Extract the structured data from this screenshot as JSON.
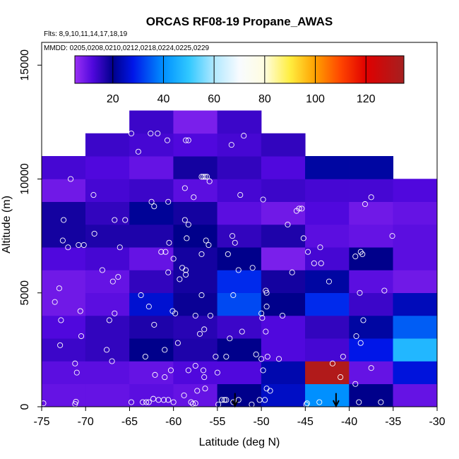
{
  "chart_data": {
    "type": "heatmap",
    "title": "ORCAS RF08-19 Propane_AWAS",
    "flights_note": "Flts: 8,9,10,11,14,17,18,19",
    "dates_note": "MMDD: 0205,0208,0210,0212,0218,0224,0225,0229",
    "xlabel": "Latitude (deg N)",
    "ylabel": "Altitude (m)",
    "xlim": [
      -75,
      -30
    ],
    "ylim": [
      0,
      16000
    ],
    "x_ticks": [
      -75,
      -70,
      -65,
      -60,
      -55,
      -50,
      -45,
      -40,
      -35,
      -30
    ],
    "x_tick_labels": [
      "-75",
      "-70",
      "-65",
      "-60",
      "-55",
      "-50",
      "-45",
      "-40",
      "-35",
      "-30"
    ],
    "y_ticks": [
      0,
      5000,
      10000,
      15000
    ],
    "y_tick_labels": [
      "0",
      "5000",
      "10000",
      "15000"
    ],
    "colorbar": {
      "min": 5,
      "max": 135,
      "ticks": [
        20,
        40,
        60,
        80,
        100,
        120
      ],
      "tick_labels": [
        "20",
        "40",
        "60",
        "80",
        "100",
        "120"
      ],
      "stops": [
        {
          "v": 5,
          "c": "#9a30f5"
        },
        {
          "v": 12,
          "c": "#5008dd"
        },
        {
          "v": 20,
          "c": "#00008b"
        },
        {
          "v": 28,
          "c": "#0016e8"
        },
        {
          "v": 40,
          "c": "#0090ff"
        },
        {
          "v": 50,
          "c": "#30c8ff"
        },
        {
          "v": 60,
          "c": "#b0e8ff"
        },
        {
          "v": 70,
          "c": "#f8fbff"
        },
        {
          "v": 80,
          "c": "#fffde0"
        },
        {
          "v": 90,
          "c": "#ffee40"
        },
        {
          "v": 100,
          "c": "#ffa000"
        },
        {
          "v": 110,
          "c": "#ff4500"
        },
        {
          "v": 120,
          "c": "#e00000"
        },
        {
          "v": 135,
          "c": "#a52020"
        }
      ]
    },
    "bin_size": {
      "lat": 5,
      "alt": 1000
    },
    "cells": [
      [
        -75,
        0,
        10
      ],
      [
        -70,
        0,
        10
      ],
      [
        -65,
        0,
        11
      ],
      [
        -60,
        0,
        10
      ],
      [
        -55,
        0,
        20
      ],
      [
        -50,
        0,
        25
      ],
      [
        -45,
        0,
        40
      ],
      [
        -40,
        0,
        20
      ],
      [
        -35,
        0,
        10
      ],
      [
        -75,
        1000,
        11
      ],
      [
        -70,
        1000,
        11
      ],
      [
        -65,
        1000,
        10
      ],
      [
        -60,
        1000,
        12
      ],
      [
        -55,
        1000,
        12
      ],
      [
        -50,
        1000,
        23
      ],
      [
        -45,
        1000,
        132
      ],
      [
        -40,
        1000,
        10
      ],
      [
        -35,
        1000,
        27
      ],
      [
        -75,
        2000,
        14
      ],
      [
        -70,
        2000,
        15
      ],
      [
        -65,
        2000,
        20
      ],
      [
        -60,
        2000,
        17
      ],
      [
        -55,
        2000,
        20
      ],
      [
        -50,
        2000,
        12
      ],
      [
        -45,
        2000,
        13
      ],
      [
        -40,
        2000,
        28
      ],
      [
        -35,
        2000,
        47
      ],
      [
        -75,
        3000,
        12
      ],
      [
        -70,
        3000,
        15
      ],
      [
        -65,
        3000,
        17
      ],
      [
        -60,
        3000,
        16
      ],
      [
        -55,
        3000,
        14
      ],
      [
        -50,
        3000,
        12
      ],
      [
        -45,
        3000,
        15
      ],
      [
        -40,
        3000,
        22
      ],
      [
        -35,
        3000,
        35
      ],
      [
        -75,
        4000,
        9
      ],
      [
        -70,
        4000,
        11
      ],
      [
        -65,
        4000,
        26
      ],
      [
        -60,
        4000,
        19
      ],
      [
        -55,
        4000,
        33
      ],
      [
        -50,
        4000,
        20
      ],
      [
        -45,
        4000,
        30
      ],
      [
        -40,
        4000,
        14
      ],
      [
        -35,
        4000,
        24
      ],
      [
        -75,
        5000,
        9
      ],
      [
        -70,
        5000,
        10
      ],
      [
        -65,
        5000,
        15
      ],
      [
        -60,
        5000,
        18
      ],
      [
        -55,
        5000,
        30
      ],
      [
        -50,
        5000,
        18
      ],
      [
        -45,
        5000,
        22
      ],
      [
        -40,
        5000,
        11
      ],
      [
        -35,
        5000,
        9
      ],
      [
        -75,
        6000,
        12
      ],
      [
        -70,
        6000,
        13
      ],
      [
        -65,
        6000,
        10
      ],
      [
        -60,
        6000,
        18
      ],
      [
        -55,
        6000,
        20
      ],
      [
        -50,
        6000,
        8
      ],
      [
        -45,
        6000,
        13
      ],
      [
        -40,
        6000,
        20
      ],
      [
        -35,
        6000,
        11
      ],
      [
        -75,
        7000,
        18
      ],
      [
        -70,
        7000,
        17
      ],
      [
        -65,
        7000,
        17
      ],
      [
        -60,
        7000,
        20
      ],
      [
        -55,
        7000,
        15
      ],
      [
        -50,
        7000,
        17
      ],
      [
        -45,
        7000,
        11
      ],
      [
        -40,
        7000,
        10
      ],
      [
        -35,
        7000,
        11
      ],
      [
        -75,
        8000,
        18
      ],
      [
        -70,
        8000,
        15
      ],
      [
        -65,
        8000,
        21
      ],
      [
        -60,
        8000,
        18
      ],
      [
        -55,
        8000,
        11
      ],
      [
        -50,
        8000,
        9
      ],
      [
        -45,
        8000,
        12
      ],
      [
        -40,
        8000,
        9
      ],
      [
        -35,
        8000,
        10
      ],
      [
        -75,
        9000,
        9
      ],
      [
        -70,
        9000,
        13
      ],
      [
        -65,
        9000,
        14
      ],
      [
        -60,
        9000,
        11
      ],
      [
        -55,
        9000,
        13
      ],
      [
        -50,
        9000,
        14
      ],
      [
        -45,
        9000,
        13
      ],
      [
        -40,
        9000,
        13
      ],
      [
        -35,
        9000,
        12
      ],
      [
        -75,
        10000,
        13
      ],
      [
        -70,
        10000,
        12
      ],
      [
        -65,
        10000,
        10
      ],
      [
        -60,
        10000,
        18
      ],
      [
        -55,
        10000,
        15
      ],
      [
        -50,
        10000,
        12
      ],
      [
        -45,
        10000,
        22
      ],
      [
        -40,
        10000,
        22
      ],
      [
        -70,
        11000,
        14
      ],
      [
        -65,
        11000,
        13
      ],
      [
        -60,
        11000,
        12
      ],
      [
        -55,
        11000,
        13
      ],
      [
        -50,
        11000,
        15
      ],
      [
        -65,
        12000,
        14
      ],
      [
        -60,
        12000,
        8
      ],
      [
        -55,
        12000,
        14
      ]
    ],
    "samples": [
      [
        -74.8,
        150
      ],
      [
        -71.2,
        120
      ],
      [
        -71.1,
        220
      ],
      [
        -71.0,
        1500
      ],
      [
        -71.2,
        1900
      ],
      [
        -70.5,
        3100
      ],
      [
        -70.6,
        4200
      ],
      [
        -72.9,
        2700
      ],
      [
        -72.8,
        3800
      ],
      [
        -73.5,
        4600
      ],
      [
        -73.0,
        5200
      ],
      [
        -72.0,
        7000
      ],
      [
        -72.6,
        7300
      ],
      [
        -72.5,
        8200
      ],
      [
        -70.8,
        7100
      ],
      [
        -70.2,
        7100
      ],
      [
        -69.0,
        7600
      ],
      [
        -68.1,
        6000
      ],
      [
        -66.9,
        5500
      ],
      [
        -66.3,
        5700
      ],
      [
        -67.3,
        3800
      ],
      [
        -66.7,
        4100
      ],
      [
        -67.6,
        2500
      ],
      [
        -67.0,
        2000
      ],
      [
        -66.1,
        7000
      ],
      [
        -65.5,
        8200
      ],
      [
        -64.8,
        12000
      ],
      [
        -64.0,
        11200
      ],
      [
        -62.6,
        12000
      ],
      [
        -61.8,
        12000
      ],
      [
        -60.7,
        11700
      ],
      [
        -58.6,
        11700
      ],
      [
        -58.3,
        11700
      ],
      [
        -60.6,
        9000
      ],
      [
        -62.2,
        8800
      ],
      [
        -58.7,
        9600
      ],
      [
        -58.3,
        8000
      ],
      [
        -58.5,
        7400
      ],
      [
        -58.7,
        8200
      ],
      [
        -60.5,
        7200
      ],
      [
        -60.9,
        6800
      ],
      [
        -61.4,
        6800
      ],
      [
        -60.0,
        6500
      ],
      [
        -59.3,
        5600
      ],
      [
        -59.0,
        6100
      ],
      [
        -58.6,
        6000
      ],
      [
        -60.6,
        5900
      ],
      [
        -58.6,
        5800
      ],
      [
        -63.7,
        4900
      ],
      [
        -62.8,
        4400
      ],
      [
        -62.2,
        3600
      ],
      [
        -60.1,
        4200
      ],
      [
        -59.8,
        4100
      ],
      [
        -63.2,
        2200
      ],
      [
        -61.0,
        2500
      ],
      [
        -62.1,
        1400
      ],
      [
        -61.0,
        1300
      ],
      [
        -60.3,
        1600
      ],
      [
        -58.3,
        1600
      ],
      [
        -57.5,
        1800
      ],
      [
        -56.6,
        1600
      ],
      [
        -59.5,
        2800
      ],
      [
        -57.0,
        3200
      ],
      [
        -56.5,
        3400
      ],
      [
        -55.8,
        4000
      ],
      [
        -56.8,
        4900
      ],
      [
        -57.5,
        4000
      ],
      [
        -53.6,
        3000
      ],
      [
        -53.2,
        4900
      ],
      [
        -52.2,
        3300
      ],
      [
        -52.6,
        6000
      ],
      [
        -51.0,
        6100
      ],
      [
        -53.0,
        7200
      ],
      [
        -53.3,
        7500
      ],
      [
        -53.8,
        6700
      ],
      [
        -56.8,
        6700
      ],
      [
        -56.0,
        7100
      ],
      [
        -56.3,
        7300
      ],
      [
        -55.2,
        2200
      ],
      [
        -54.0,
        2200
      ],
      [
        -55.0,
        1500
      ],
      [
        -56.4,
        800
      ],
      [
        -57.3,
        700
      ],
      [
        -58.8,
        500
      ],
      [
        -58.0,
        200
      ],
      [
        -57.5,
        150
      ],
      [
        -57.8,
        130
      ],
      [
        -56.5,
        1300
      ],
      [
        -54.9,
        100
      ],
      [
        -54.5,
        300
      ],
      [
        -54.2,
        300
      ],
      [
        -54.0,
        300
      ],
      [
        -53.2,
        200
      ],
      [
        -52.6,
        300
      ],
      [
        -51.1,
        100
      ],
      [
        -50.2,
        300
      ],
      [
        -49.6,
        300
      ],
      [
        -49.4,
        800
      ],
      [
        -49.0,
        700
      ],
      [
        -49.8,
        1600
      ],
      [
        -50.0,
        2100
      ],
      [
        -50.6,
        2300
      ],
      [
        -49.3,
        2200
      ],
      [
        -48.0,
        2100
      ],
      [
        -49.5,
        3300
      ],
      [
        -49.9,
        3900
      ],
      [
        -50.0,
        4100
      ],
      [
        -49.4,
        4400
      ],
      [
        -49.4,
        5000
      ],
      [
        -49.5,
        5100
      ],
      [
        -47.6,
        4000
      ],
      [
        -46.5,
        5900
      ],
      [
        -47.0,
        8000
      ],
      [
        -45.2,
        7400
      ],
      [
        -44.7,
        6800
      ],
      [
        -44.0,
        6300
      ],
      [
        -43.2,
        6300
      ],
      [
        -43.3,
        7000
      ],
      [
        -42.3,
        5500
      ],
      [
        -39.2,
        3100
      ],
      [
        -38.4,
        3800
      ],
      [
        -38.8,
        5000
      ],
      [
        -36.0,
        5100
      ],
      [
        -39.3,
        6600
      ],
      [
        -38.5,
        6700
      ],
      [
        -38.7,
        6800
      ],
      [
        -41.9,
        1900
      ],
      [
        -40.7,
        2200
      ],
      [
        -39.3,
        1000
      ],
      [
        -41.0,
        1300
      ],
      [
        -38.7,
        2800
      ],
      [
        -37.5,
        1700
      ],
      [
        -35.1,
        7500
      ],
      [
        -37.5,
        9200
      ],
      [
        -38.2,
        8900
      ],
      [
        -45.4,
        8700
      ],
      [
        -45.7,
        8700
      ],
      [
        -46.0,
        8600
      ],
      [
        -49.8,
        9100
      ],
      [
        -52.4,
        9300
      ],
      [
        -52.0,
        11900
      ],
      [
        -53.4,
        11500
      ],
      [
        -55.9,
        9900
      ],
      [
        -56.2,
        10100
      ],
      [
        -56.4,
        10100
      ],
      [
        -56.6,
        10100
      ],
      [
        -56.8,
        10100
      ],
      [
        -57.7,
        9200
      ],
      [
        -62.5,
        9000
      ],
      [
        -66.7,
        8200
      ],
      [
        -69.1,
        9300
      ],
      [
        -71.7,
        10000
      ],
      [
        -43.4,
        200
      ],
      [
        -44.8,
        150
      ],
      [
        -44.9,
        100
      ],
      [
        -36.4,
        200
      ],
      [
        -38.9,
        200
      ],
      [
        -63.5,
        200
      ],
      [
        -63.1,
        200
      ],
      [
        -62.8,
        200
      ],
      [
        -64.8,
        200
      ],
      [
        -62.3,
        350
      ],
      [
        -61.7,
        300
      ],
      [
        -61.1,
        300
      ],
      [
        -60.6,
        300
      ],
      [
        -60.0,
        200
      ]
    ],
    "arrows_lat": [
      -53,
      -41.5
    ]
  }
}
